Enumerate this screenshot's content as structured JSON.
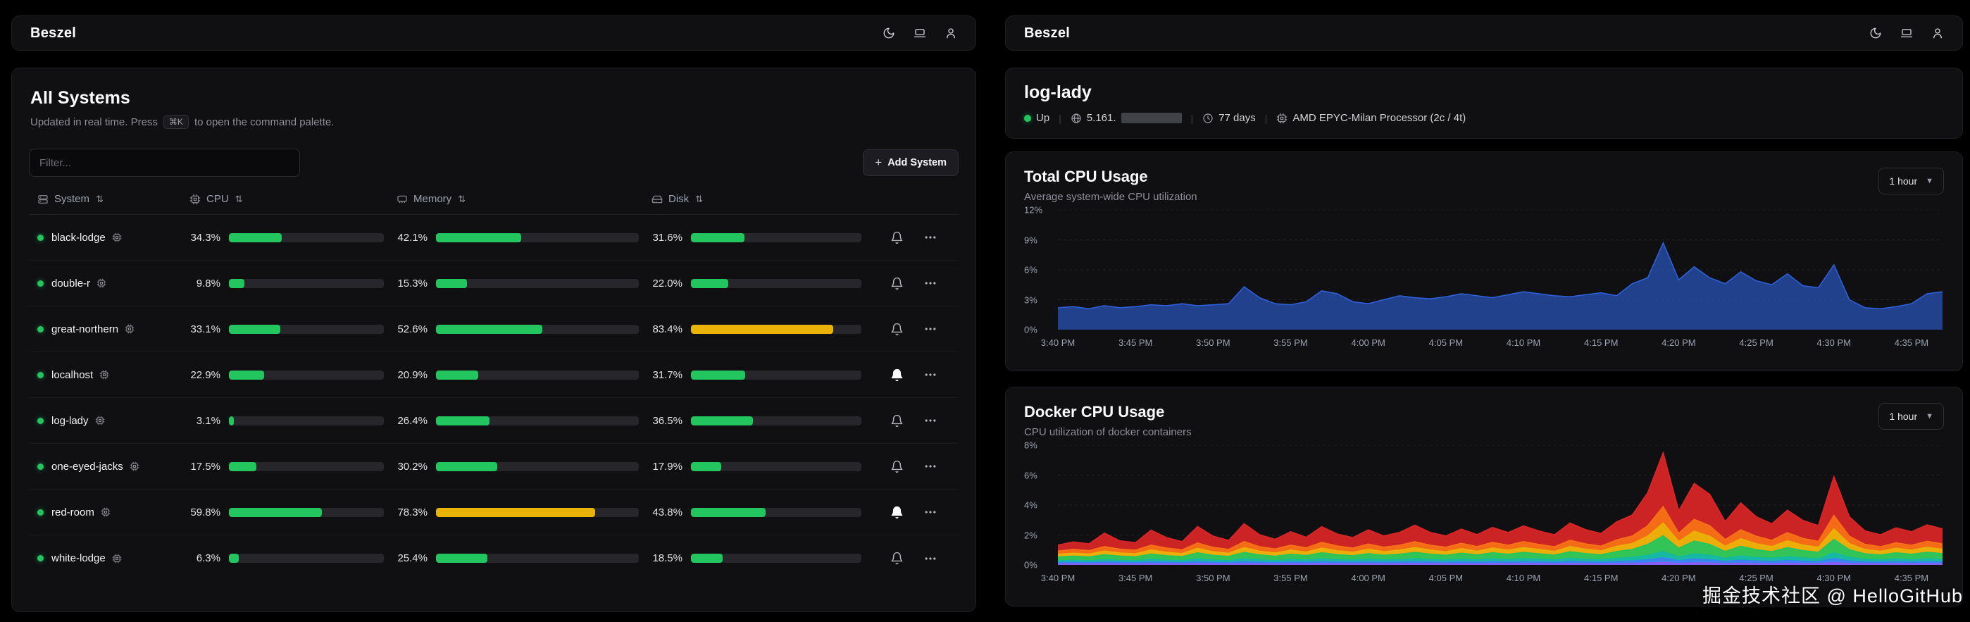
{
  "app": {
    "brand": "Beszel"
  },
  "colors": {
    "bar_ok": "#22c55e",
    "bar_warn": "#eab308",
    "accent_green": "#22c55e"
  },
  "watermark": {
    "text": "掘金技术社区 @ HelloGitHub"
  },
  "left": {
    "all_systems": {
      "title": "All Systems",
      "subtitle_prefix": "Updated in real time. Press",
      "subtitle_kbd": "⌘K",
      "subtitle_suffix": "to open the command palette.",
      "filter_placeholder": "Filter...",
      "add_button_label": "Add System",
      "warn_threshold": 65,
      "columns": [
        {
          "label": "System"
        },
        {
          "label": "CPU"
        },
        {
          "label": "Memory"
        },
        {
          "label": "Disk"
        }
      ],
      "rows": [
        {
          "name": "black-lodge",
          "cpu": 34.3,
          "memory": 42.1,
          "disk": 31.6,
          "alert": false
        },
        {
          "name": "double-r",
          "cpu": 9.8,
          "memory": 15.3,
          "disk": 22.0,
          "alert": false
        },
        {
          "name": "great-northern",
          "cpu": 33.1,
          "memory": 52.6,
          "disk": 83.4,
          "alert": false
        },
        {
          "name": "localhost",
          "cpu": 22.9,
          "memory": 20.9,
          "disk": 31.7,
          "alert": true
        },
        {
          "name": "log-lady",
          "cpu": 3.1,
          "memory": 26.4,
          "disk": 36.5,
          "alert": false
        },
        {
          "name": "one-eyed-jacks",
          "cpu": 17.5,
          "memory": 30.2,
          "disk": 17.9,
          "alert": false
        },
        {
          "name": "red-room",
          "cpu": 59.8,
          "memory": 78.3,
          "disk": 43.8,
          "alert": true
        },
        {
          "name": "white-lodge",
          "cpu": 6.3,
          "memory": 25.4,
          "disk": 18.5,
          "alert": false
        }
      ]
    }
  },
  "right": {
    "system": {
      "name": "log-lady",
      "status": "Up",
      "ip_prefix": "5.161.",
      "uptime": "77 days",
      "cpu_model": "AMD EPYC-Milan Processor (2c / 4t)"
    }
  },
  "chart_data": [
    {
      "type": "area",
      "title": "Total CPU Usage",
      "subtitle": "Average system-wide CPU utilization",
      "range_selector": "1 hour",
      "ylim": [
        0,
        12
      ],
      "y_ticks": [
        0,
        3,
        6,
        9,
        12
      ],
      "x_ticks": [
        "3:40 PM",
        "3:45 PM",
        "3:50 PM",
        "3:55 PM",
        "4:00 PM",
        "4:05 PM",
        "4:10 PM",
        "4:15 PM",
        "4:20 PM",
        "4:25 PM",
        "4:30 PM",
        "4:35 PM"
      ],
      "x_tick_interval": 5,
      "grid": true,
      "legend": false,
      "series": [
        {
          "name": "cpu",
          "color": "#2e63e0",
          "values": [
            2.2,
            2.3,
            2.1,
            2.4,
            2.2,
            2.3,
            2.5,
            2.4,
            2.6,
            2.4,
            2.5,
            2.6,
            4.3,
            3.2,
            2.6,
            2.5,
            2.8,
            3.9,
            3.6,
            2.8,
            2.6,
            3.0,
            3.4,
            3.2,
            3.1,
            3.3,
            3.6,
            3.4,
            3.2,
            3.5,
            3.8,
            3.6,
            3.4,
            3.3,
            3.5,
            3.7,
            3.4,
            4.6,
            5.2,
            8.7,
            5.0,
            6.3,
            5.2,
            4.6,
            5.8,
            4.9,
            4.5,
            5.6,
            4.4,
            4.2,
            6.5,
            3.0,
            2.2,
            2.1,
            2.3,
            2.6,
            3.6,
            3.8
          ]
        }
      ]
    },
    {
      "type": "stacked-area",
      "title": "Docker CPU Usage",
      "subtitle": "CPU utilization of docker containers",
      "range_selector": "1 hour",
      "ylim": [
        0,
        8
      ],
      "y_ticks": [
        0,
        2,
        4,
        6,
        8
      ],
      "x_ticks": [
        "3:40 PM",
        "3:45 PM",
        "3:50 PM",
        "3:55 PM",
        "4:00 PM",
        "4:05 PM",
        "4:10 PM",
        "4:15 PM",
        "4:20 PM",
        "4:25 PM",
        "4:30 PM",
        "4:35 PM"
      ],
      "x_tick_interval": 5,
      "grid": true,
      "legend": false,
      "series": [
        {
          "name": "s1",
          "color": "#8b5cf6",
          "values": [
            0.06,
            0.07,
            0.06,
            0.08,
            0.07,
            0.06,
            0.08,
            0.07,
            0.06,
            0.09,
            0.07,
            0.06,
            0.09,
            0.07,
            0.06,
            0.08,
            0.07,
            0.09,
            0.08,
            0.07,
            0.08,
            0.07,
            0.08,
            0.09,
            0.08,
            0.07,
            0.08,
            0.07,
            0.09,
            0.08,
            0.09,
            0.08,
            0.07,
            0.09,
            0.08,
            0.07,
            0.09,
            0.1,
            0.13,
            0.18,
            0.11,
            0.15,
            0.13,
            0.09,
            0.12,
            0.1,
            0.09,
            0.11,
            0.1,
            0.09,
            0.16,
            0.1,
            0.08,
            0.07,
            0.09,
            0.08,
            0.09,
            0.08
          ]
        },
        {
          "name": "s2",
          "color": "#3b82f6",
          "values": [
            0.1,
            0.11,
            0.1,
            0.12,
            0.11,
            0.1,
            0.13,
            0.11,
            0.1,
            0.14,
            0.11,
            0.1,
            0.14,
            0.12,
            0.1,
            0.12,
            0.11,
            0.14,
            0.12,
            0.11,
            0.13,
            0.11,
            0.12,
            0.14,
            0.12,
            0.11,
            0.13,
            0.12,
            0.14,
            0.12,
            0.14,
            0.13,
            0.11,
            0.15,
            0.13,
            0.12,
            0.15,
            0.17,
            0.22,
            0.3,
            0.18,
            0.25,
            0.22,
            0.15,
            0.2,
            0.17,
            0.15,
            0.19,
            0.16,
            0.14,
            0.27,
            0.17,
            0.13,
            0.12,
            0.14,
            0.12,
            0.14,
            0.13
          ]
        },
        {
          "name": "s3",
          "color": "#14b8a6",
          "values": [
            0.12,
            0.13,
            0.12,
            0.15,
            0.13,
            0.12,
            0.16,
            0.14,
            0.13,
            0.18,
            0.14,
            0.13,
            0.19,
            0.15,
            0.13,
            0.16,
            0.14,
            0.18,
            0.15,
            0.14,
            0.17,
            0.15,
            0.16,
            0.19,
            0.16,
            0.15,
            0.18,
            0.15,
            0.18,
            0.16,
            0.19,
            0.17,
            0.15,
            0.2,
            0.17,
            0.15,
            0.2,
            0.23,
            0.3,
            0.42,
            0.25,
            0.35,
            0.3,
            0.2,
            0.28,
            0.23,
            0.2,
            0.26,
            0.21,
            0.19,
            0.38,
            0.23,
            0.17,
            0.15,
            0.18,
            0.16,
            0.19,
            0.17
          ]
        },
        {
          "name": "s4",
          "color": "#22c55e",
          "values": [
            0.25,
            0.28,
            0.26,
            0.33,
            0.28,
            0.27,
            0.36,
            0.3,
            0.27,
            0.4,
            0.32,
            0.28,
            0.42,
            0.33,
            0.29,
            0.36,
            0.31,
            0.41,
            0.34,
            0.3,
            0.38,
            0.32,
            0.36,
            0.42,
            0.36,
            0.32,
            0.4,
            0.33,
            0.41,
            0.36,
            0.42,
            0.37,
            0.33,
            0.45,
            0.38,
            0.34,
            0.46,
            0.53,
            0.72,
            1.05,
            0.58,
            0.85,
            0.72,
            0.46,
            0.65,
            0.52,
            0.45,
            0.6,
            0.49,
            0.43,
            0.9,
            0.52,
            0.37,
            0.33,
            0.4,
            0.36,
            0.43,
            0.38
          ]
        },
        {
          "name": "s5",
          "color": "#eab308",
          "values": [
            0.18,
            0.2,
            0.19,
            0.25,
            0.21,
            0.2,
            0.27,
            0.23,
            0.2,
            0.3,
            0.24,
            0.21,
            0.32,
            0.25,
            0.22,
            0.27,
            0.23,
            0.31,
            0.26,
            0.23,
            0.29,
            0.24,
            0.27,
            0.32,
            0.27,
            0.24,
            0.3,
            0.25,
            0.31,
            0.27,
            0.32,
            0.28,
            0.25,
            0.34,
            0.29,
            0.26,
            0.35,
            0.4,
            0.55,
            0.85,
            0.45,
            0.65,
            0.55,
            0.35,
            0.5,
            0.4,
            0.34,
            0.45,
            0.37,
            0.33,
            0.7,
            0.4,
            0.28,
            0.25,
            0.3,
            0.27,
            0.33,
            0.29
          ]
        },
        {
          "name": "s6",
          "color": "#f97316",
          "values": [
            0.22,
            0.25,
            0.23,
            0.3,
            0.26,
            0.24,
            0.33,
            0.28,
            0.25,
            0.36,
            0.3,
            0.26,
            0.4,
            0.3,
            0.27,
            0.33,
            0.29,
            0.38,
            0.32,
            0.28,
            0.35,
            0.3,
            0.33,
            0.4,
            0.33,
            0.3,
            0.36,
            0.31,
            0.38,
            0.33,
            0.4,
            0.34,
            0.31,
            0.42,
            0.36,
            0.32,
            0.43,
            0.5,
            0.7,
            1.1,
            0.55,
            0.8,
            0.7,
            0.45,
            0.6,
            0.5,
            0.42,
            0.55,
            0.45,
            0.4,
            0.9,
            0.5,
            0.35,
            0.3,
            0.37,
            0.33,
            0.4,
            0.36
          ]
        },
        {
          "name": "s7",
          "color": "#dc2626",
          "values": [
            0.4,
            0.5,
            0.45,
            0.9,
            0.55,
            0.5,
            1.0,
            0.7,
            0.55,
            1.1,
            0.75,
            0.6,
            1.2,
            0.8,
            0.65,
            0.9,
            0.7,
            1.05,
            0.8,
            0.7,
            0.95,
            0.75,
            0.85,
            1.1,
            0.85,
            0.75,
            0.95,
            0.8,
            1.0,
            0.85,
            1.05,
            0.9,
            0.8,
            1.15,
            0.95,
            0.85,
            1.2,
            1.4,
            2.2,
            3.6,
            1.5,
            2.4,
            2.1,
            1.2,
            1.8,
            1.3,
            1.1,
            1.5,
            1.2,
            1.05,
            2.6,
            1.3,
            0.9,
            0.8,
            1.0,
            0.9,
            1.1,
            1.0
          ]
        }
      ]
    }
  ]
}
